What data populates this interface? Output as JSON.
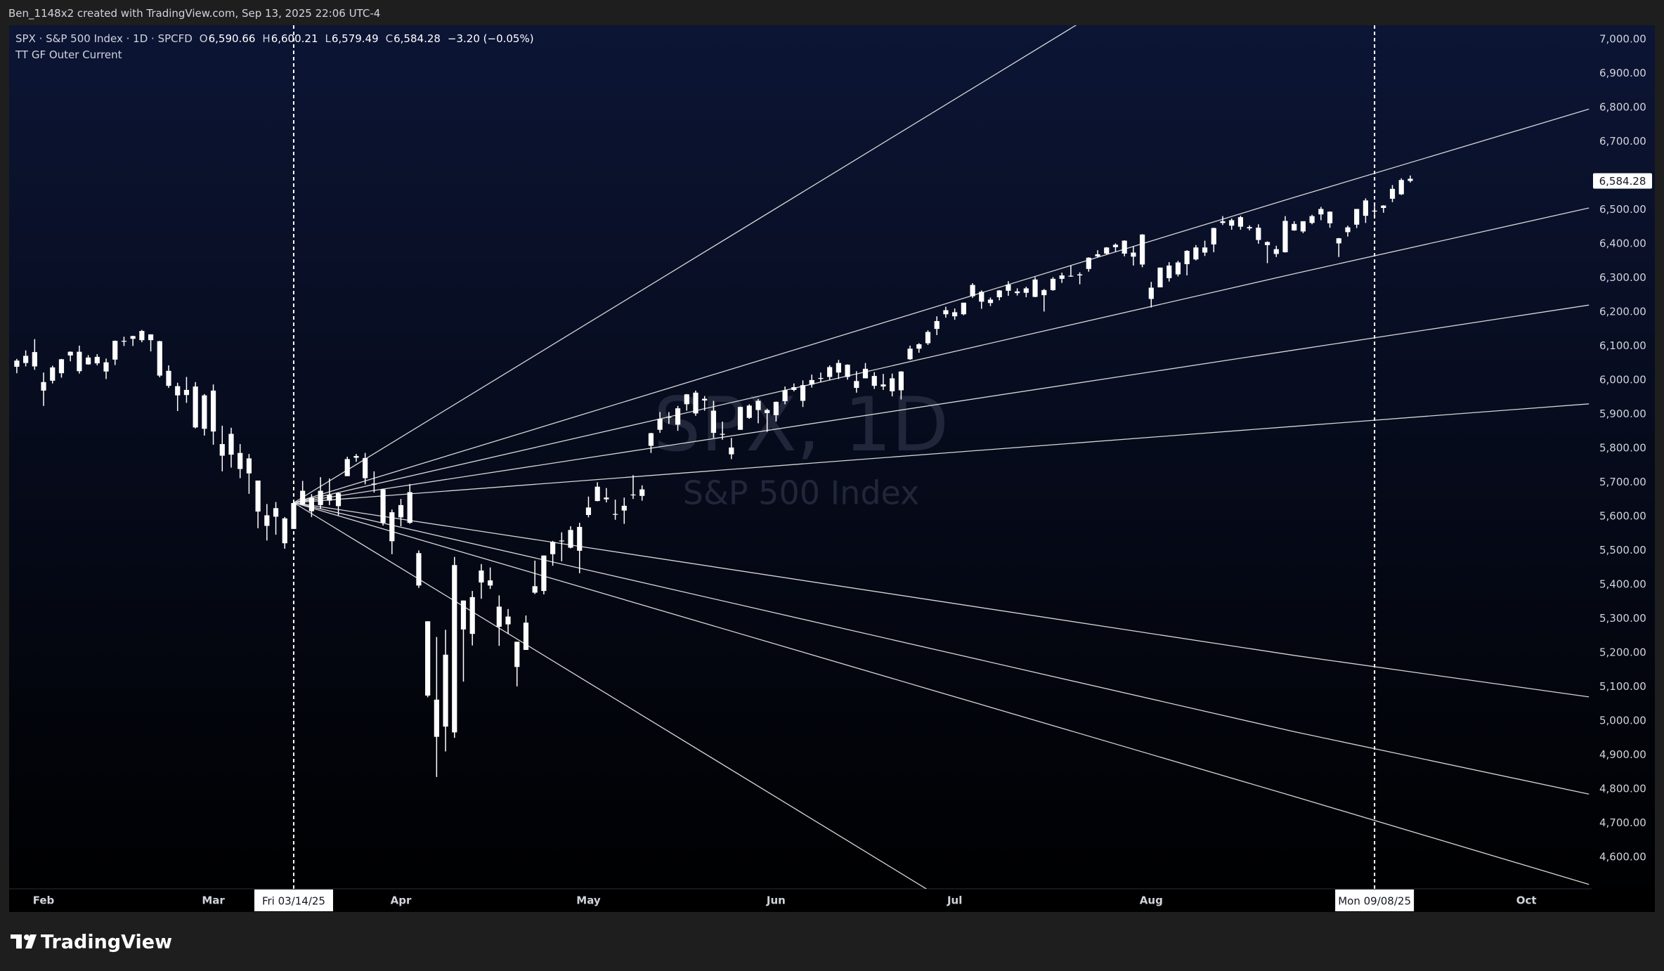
{
  "attribution": "Ben_1148x2 created with TradingView.com, Sep 13, 2025 22:06 UTC-4",
  "header": {
    "symbol": "SPX · S&P 500 Index · 1D · SPCFD",
    "o": "O",
    "open": "6,590.66",
    "h": "H",
    "high": "6,600.21",
    "l": "L",
    "low": "6,579.49",
    "c": "C",
    "close": "6,584.28",
    "change": "−3.20 (−0.05%)",
    "indicator": "TT GF Outer Current"
  },
  "footer": {
    "brand": "TradingView"
  },
  "chart_data": {
    "type": "candlestick",
    "title": "SPX, 1D",
    "subtitle": "S&P 500 Index",
    "color": "#ffffff",
    "line_color": "#d6d6d6",
    "grid": false,
    "xlim": [
      -0.7,
      176.3
    ],
    "ylim": [
      4507,
      7041
    ],
    "xticks": [
      {
        "value": 3,
        "label": "Feb"
      },
      {
        "value": 22,
        "label": "Mar"
      },
      {
        "value": 43,
        "label": "Apr"
      },
      {
        "value": 64,
        "label": "May"
      },
      {
        "value": 85,
        "label": "Jun"
      },
      {
        "value": 105,
        "label": "Jul"
      },
      {
        "value": 127,
        "label": "Aug"
      },
      {
        "value": 169,
        "label": "Oct"
      }
    ],
    "yticks": [
      {
        "value": 4600,
        "label": "4,600.00"
      },
      {
        "value": 4700,
        "label": "4,700.00"
      },
      {
        "value": 4800,
        "label": "4,800.00"
      },
      {
        "value": 4900,
        "label": "4,900.00"
      },
      {
        "value": 5000,
        "label": "5,000.00"
      },
      {
        "value": 5100,
        "label": "5,100.00"
      },
      {
        "value": 5200,
        "label": "5,200.00"
      },
      {
        "value": 5300,
        "label": "5,300.00"
      },
      {
        "value": 5400,
        "label": "5,400.00"
      },
      {
        "value": 5500,
        "label": "5,500.00"
      },
      {
        "value": 5600,
        "label": "5,600.00"
      },
      {
        "value": 5700,
        "label": "5,700.00"
      },
      {
        "value": 5800,
        "label": "5,800.00"
      },
      {
        "value": 5900,
        "label": "5,900.00"
      },
      {
        "value": 6000,
        "label": "6,000.00"
      },
      {
        "value": 6100,
        "label": "6,100.00"
      },
      {
        "value": 6200,
        "label": "6,200.00"
      },
      {
        "value": 6300,
        "label": "6,300.00"
      },
      {
        "value": 6400,
        "label": "6,400.00"
      },
      {
        "value": 6500,
        "label": "6,500.00"
      },
      {
        "value": 6700,
        "label": "6,700.00"
      },
      {
        "value": 6800,
        "label": "6,800.00"
      },
      {
        "value": 6900,
        "label": "6,900.00"
      },
      {
        "value": 7000,
        "label": "7,000.00"
      }
    ],
    "last_price": {
      "value": 6584.28,
      "label": "6,584.28"
    },
    "markers": [
      {
        "x": 31,
        "label": "Fri 03/14/25"
      },
      {
        "x": 152,
        "label": "Mon 09/08/25"
      }
    ],
    "lines": [
      {
        "x": [
          31,
          63,
          103,
          143,
          176
        ],
        "values": [
          5640,
          5704,
          5784,
          5864,
          5930
        ]
      },
      {
        "x": [
          31,
          63,
          103,
          143,
          176
        ],
        "values": [
          5640,
          5768,
          5928,
          6088,
          6220
        ]
      },
      {
        "x": [
          31,
          63,
          103,
          143,
          176
        ],
        "values": [
          5640,
          5832,
          6072,
          6312,
          6505
        ]
      },
      {
        "x": [
          31,
          63,
          103,
          143,
          176
        ],
        "values": [
          5640,
          5896,
          6216,
          6536,
          6795
        ]
      },
      {
        "x": [
          31,
          63,
          93,
          119
        ],
        "values": [
          5640,
          6152,
          6632,
          7048
        ]
      },
      {
        "x": [
          31,
          63,
          103,
          143,
          176
        ],
        "values": [
          5640,
          5512,
          5352,
          5192,
          5070
        ]
      },
      {
        "x": [
          31,
          63,
          103,
          143,
          176
        ],
        "values": [
          5640,
          5448,
          5208,
          4968,
          4785
        ]
      },
      {
        "x": [
          31,
          63,
          103,
          143,
          176
        ],
        "values": [
          5640,
          5394,
          5086,
          4778,
          4520
        ]
      },
      {
        "x": [
          31,
          63,
          93,
          102
        ],
        "values": [
          5640,
          5128,
          4648,
          4504
        ]
      }
    ],
    "ohlc": [
      [
        6057,
        6062,
        6020,
        6039
      ],
      [
        6050,
        6087,
        6040,
        6071
      ],
      [
        6082,
        6120,
        6030,
        6040
      ],
      [
        5969,
        6022,
        5924,
        5994
      ],
      [
        5998,
        6042,
        5990,
        6037
      ],
      [
        6020,
        6062,
        6007,
        6061
      ],
      [
        6072,
        6084,
        6055,
        6083
      ],
      [
        6083,
        6101,
        6019,
        6026
      ],
      [
        6046,
        6073,
        6045,
        6066
      ],
      [
        6049,
        6076,
        6043,
        6068
      ],
      [
        6025,
        6063,
        6003,
        6052
      ],
      [
        6060,
        6116,
        6044,
        6115
      ],
      [
        6115,
        6127,
        6100,
        6114
      ],
      [
        6121,
        6130,
        6100,
        6129
      ],
      [
        6117,
        6147,
        6111,
        6144
      ],
      [
        6134,
        6134,
        6084,
        6117
      ],
      [
        6114,
        6115,
        6008,
        6013
      ],
      [
        6027,
        6043,
        5977,
        5983
      ],
      [
        5982,
        5992,
        5909,
        5955
      ],
      [
        5971,
        6009,
        5933,
        5956
      ],
      [
        5981,
        5994,
        5858,
        5861
      ],
      [
        5857,
        5959,
        5837,
        5955
      ],
      [
        5969,
        5987,
        5810,
        5849
      ],
      [
        5812,
        5866,
        5732,
        5778
      ],
      [
        5781,
        5860,
        5743,
        5842
      ],
      [
        5786,
        5812,
        5712,
        5739
      ],
      [
        5726,
        5783,
        5666,
        5770
      ],
      [
        5705,
        5705,
        5565,
        5614
      ],
      [
        5603,
        5636,
        5529,
        5572
      ],
      [
        5624,
        5642,
        5546,
        5599
      ],
      [
        5594,
        5598,
        5505,
        5521
      ],
      [
        5563,
        5645,
        5563,
        5639
      ],
      [
        5635,
        5704,
        5633,
        5675
      ],
      [
        5655,
        5665,
        5598,
        5615
      ],
      [
        5633,
        5715,
        5622,
        5675
      ],
      [
        5646,
        5711,
        5633,
        5663
      ],
      [
        5630,
        5670,
        5603,
        5668
      ],
      [
        5718,
        5775,
        5718,
        5768
      ],
      [
        5772,
        5783,
        5760,
        5777
      ],
      [
        5771,
        5786,
        5694,
        5712
      ],
      [
        5696,
        5732,
        5670,
        5693
      ],
      [
        5679,
        5681,
        5573,
        5581
      ],
      [
        5527,
        5620,
        5489,
        5612
      ],
      [
        5597,
        5651,
        5571,
        5633
      ],
      [
        5581,
        5695,
        5578,
        5671
      ],
      [
        5492,
        5500,
        5390,
        5397
      ],
      [
        5292,
        5292,
        5069,
        5074
      ],
      [
        4953,
        5246,
        4835,
        5062
      ],
      [
        5194,
        5267,
        4910,
        4983
      ],
      [
        4966,
        5481,
        4950,
        5457
      ],
      [
        5353,
        5353,
        5115,
        5268
      ],
      [
        5255,
        5381,
        5221,
        5363
      ],
      [
        5441,
        5460,
        5358,
        5406
      ],
      [
        5412,
        5450,
        5387,
        5397
      ],
      [
        5335,
        5368,
        5220,
        5276
      ],
      [
        5306,
        5328,
        5255,
        5283
      ],
      [
        5232,
        5232,
        5101,
        5158
      ],
      [
        5208,
        5309,
        5208,
        5288
      ],
      [
        5395,
        5470,
        5372,
        5376
      ],
      [
        5381,
        5485,
        5371,
        5485
      ],
      [
        5489,
        5528,
        5455,
        5525
      ],
      [
        5529,
        5553,
        5468,
        5529
      ],
      [
        5508,
        5571,
        5506,
        5560
      ],
      [
        5499,
        5581,
        5433,
        5569
      ],
      [
        5626,
        5658,
        5597,
        5604
      ],
      [
        5645,
        5700,
        5644,
        5687
      ],
      [
        5655,
        5683,
        5641,
        5650
      ],
      [
        5605,
        5649,
        5590,
        5607
      ],
      [
        5617,
        5655,
        5578,
        5631
      ],
      [
        5663,
        5721,
        5651,
        5664
      ],
      [
        5679,
        5691,
        5646,
        5660
      ],
      [
        5807,
        5845,
        5786,
        5844
      ],
      [
        5854,
        5906,
        5845,
        5886
      ],
      [
        5890,
        5906,
        5871,
        5892
      ],
      [
        5869,
        5924,
        5851,
        5917
      ],
      [
        5929,
        5959,
        5910,
        5958
      ],
      [
        5902,
        5969,
        5895,
        5963
      ],
      [
        5945,
        5953,
        5910,
        5940
      ],
      [
        5910,
        5939,
        5830,
        5845
      ],
      [
        5842,
        5878,
        5825,
        5842
      ],
      [
        5782,
        5830,
        5768,
        5802
      ],
      [
        5854,
        5922,
        5854,
        5921
      ],
      [
        5925,
        5929,
        5886,
        5889
      ],
      [
        5939,
        5944,
        5873,
        5912
      ],
      [
        5903,
        5916,
        5848,
        5912
      ],
      [
        5897,
        5937,
        5878,
        5936
      ],
      [
        5938,
        5981,
        5929,
        5970
      ],
      [
        5979,
        5990,
        5967,
        5971
      ],
      [
        5985,
        5999,
        5921,
        5939
      ],
      [
        5987,
        6016,
        5978,
        6000
      ],
      [
        6005,
        6022,
        5994,
        6006
      ],
      [
        6009,
        6043,
        6000,
        6038
      ],
      [
        6050,
        6059,
        6003,
        6022
      ],
      [
        6009,
        6046,
        6001,
        6045
      ],
      [
        5997,
        6026,
        5963,
        5977
      ],
      [
        6005,
        6050,
        6005,
        6033
      ],
      [
        6012,
        6023,
        5974,
        5983
      ],
      [
        5987,
        6018,
        5971,
        5981
      ],
      [
        6005,
        6019,
        5952,
        5967
      ],
      [
        5970,
        6026,
        5943,
        6025
      ],
      [
        6061,
        6101,
        6059,
        6092
      ],
      [
        6105,
        6108,
        6080,
        6092
      ],
      [
        6108,
        6146,
        6103,
        6141
      ],
      [
        6150,
        6187,
        6132,
        6173
      ],
      [
        6193,
        6215,
        6183,
        6205
      ],
      [
        6187,
        6210,
        6177,
        6199
      ],
      [
        6193,
        6227,
        6190,
        6227
      ],
      [
        6246,
        6284,
        6241,
        6279
      ],
      [
        6259,
        6263,
        6209,
        6230
      ],
      [
        6236,
        6242,
        6217,
        6226
      ],
      [
        6243,
        6264,
        6234,
        6263
      ],
      [
        6262,
        6290,
        6247,
        6280
      ],
      [
        6255,
        6269,
        6248,
        6260
      ],
      [
        6256,
        6274,
        6243,
        6269
      ],
      [
        6295,
        6302,
        6243,
        6244
      ],
      [
        6249,
        6267,
        6201,
        6264
      ],
      [
        6264,
        6302,
        6262,
        6297
      ],
      [
        6307,
        6315,
        6285,
        6297
      ],
      [
        6304,
        6336,
        6303,
        6306
      ],
      [
        6307,
        6316,
        6281,
        6310
      ],
      [
        6326,
        6360,
        6318,
        6359
      ],
      [
        6369,
        6381,
        6360,
        6363
      ],
      [
        6371,
        6390,
        6368,
        6389
      ],
      [
        6397,
        6401,
        6376,
        6390
      ],
      [
        6409,
        6410,
        6363,
        6371
      ],
      [
        6374,
        6393,
        6336,
        6362
      ],
      [
        6427,
        6428,
        6331,
        6339
      ],
      [
        6271,
        6288,
        6213,
        6238
      ],
      [
        6272,
        6330,
        6272,
        6330
      ],
      [
        6336,
        6346,
        6289,
        6299
      ],
      [
        6310,
        6350,
        6304,
        6345
      ],
      [
        6379,
        6381,
        6307,
        6340
      ],
      [
        6354,
        6396,
        6351,
        6389
      ],
      [
        6389,
        6409,
        6364,
        6374
      ],
      [
        6398,
        6447,
        6375,
        6446
      ],
      [
        6461,
        6481,
        6455,
        6466
      ],
      [
        6453,
        6474,
        6441,
        6469
      ],
      [
        6478,
        6482,
        6441,
        6450
      ],
      [
        6445,
        6454,
        6439,
        6449
      ],
      [
        6447,
        6457,
        6400,
        6411
      ],
      [
        6405,
        6407,
        6343,
        6396
      ],
      [
        6384,
        6394,
        6361,
        6370
      ],
      [
        6375,
        6481,
        6374,
        6467
      ],
      [
        6458,
        6466,
        6438,
        6439
      ],
      [
        6436,
        6466,
        6431,
        6466
      ],
      [
        6461,
        6485,
        6457,
        6481
      ],
      [
        6486,
        6508,
        6469,
        6502
      ],
      [
        6494,
        6495,
        6447,
        6460
      ],
      [
        6401,
        6417,
        6361,
        6416
      ],
      [
        6434,
        6453,
        6421,
        6448
      ],
      [
        6456,
        6502,
        6446,
        6502
      ],
      [
        6527,
        6533,
        6461,
        6482
      ],
      [
        6497,
        6511,
        6482,
        6495
      ],
      [
        6505,
        6513,
        6491,
        6512
      ],
      [
        6561,
        6572,
        6522,
        6532
      ],
      [
        6545,
        6592,
        6543,
        6587
      ],
      [
        6590.66,
        6600.21,
        6579.49,
        6584.28
      ]
    ]
  }
}
